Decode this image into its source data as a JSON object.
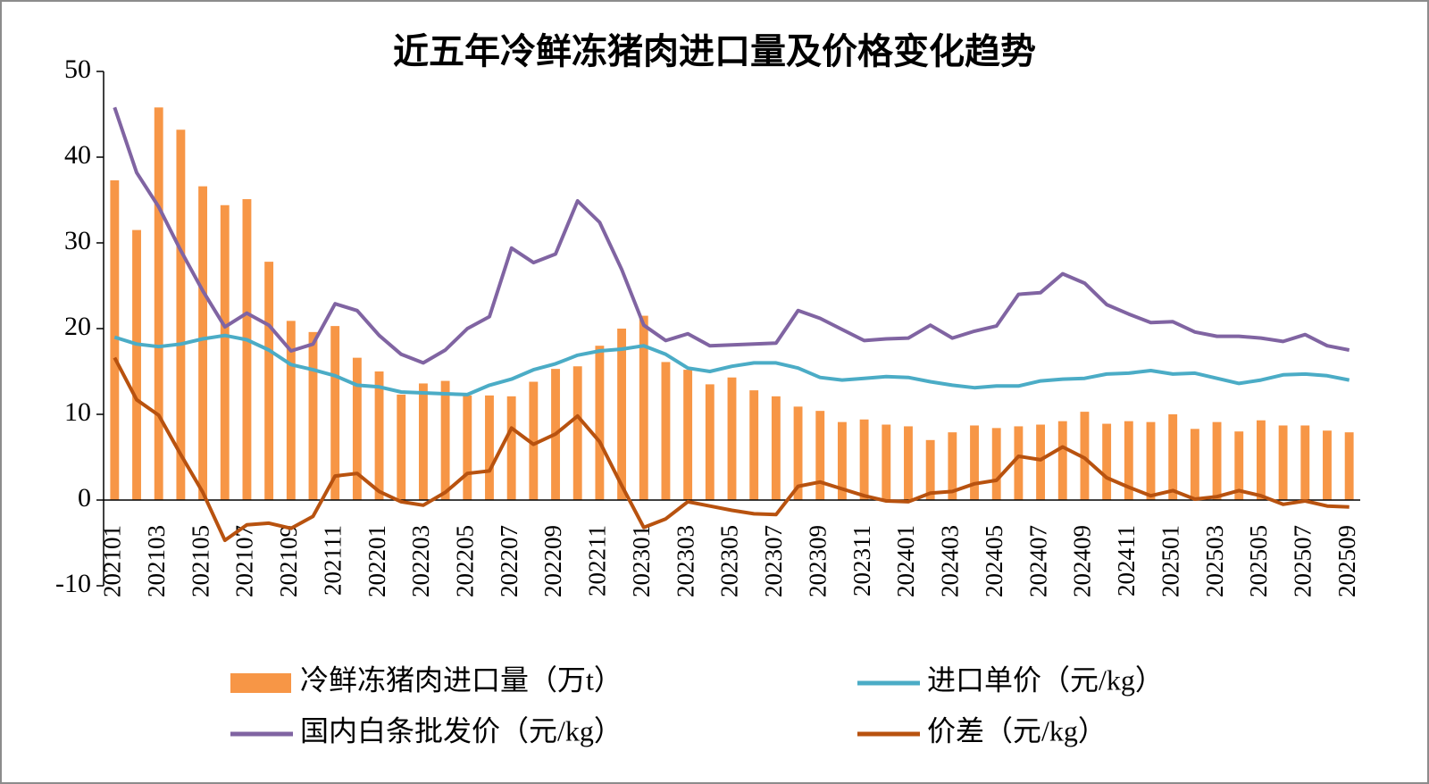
{
  "chart_data": {
    "type": "bar",
    "title": "近五年冷鲜冻猪肉进口量及价格变化趋势",
    "categories": [
      "202101",
      null,
      "202103",
      null,
      "202105",
      null,
      "202107",
      null,
      "202109",
      null,
      "202111",
      null,
      "202201",
      null,
      "202203",
      null,
      "202205",
      null,
      "202207",
      null,
      "202209",
      null,
      "202211",
      null,
      "202301",
      null,
      "202303",
      null,
      "202305",
      null,
      "202307",
      null,
      "202309",
      null,
      "202311",
      null,
      "202401",
      null,
      "202403",
      null,
      "202405",
      null,
      "202407",
      null,
      "202409",
      null,
      "202411",
      null,
      "202501",
      null,
      "202503",
      null,
      "202505",
      null,
      "202507",
      null,
      "202509"
    ],
    "series": [
      {
        "name": "冷鲜冻猪肉进口量（万t）",
        "type": "bar",
        "color": "#f79646",
        "values": [
          37.3,
          31.5,
          45.8,
          43.2,
          36.6,
          34.4,
          35.1,
          27.8,
          20.9,
          19.6,
          20.3,
          16.6,
          15.0,
          12.3,
          13.6,
          13.9,
          12.2,
          12.2,
          12.1,
          13.8,
          15.3,
          15.6,
          18.0,
          20.0,
          21.5,
          16.1,
          15.2,
          13.5,
          14.3,
          12.8,
          12.1,
          10.9,
          10.4,
          9.1,
          9.4,
          8.8,
          8.6,
          7.0,
          7.9,
          8.7,
          8.4,
          8.6,
          8.8,
          9.2,
          10.3,
          8.9,
          9.2,
          9.1,
          10.0,
          8.3,
          9.1,
          8.0,
          9.3,
          8.7,
          8.7,
          8.1,
          7.9
        ]
      },
      {
        "name": "进口单价（元/kg）",
        "type": "line",
        "color": "#4bacc6",
        "values": [
          19.0,
          18.2,
          17.9,
          18.2,
          18.8,
          19.2,
          18.7,
          17.5,
          15.8,
          15.2,
          14.5,
          13.4,
          13.2,
          12.6,
          12.5,
          12.4,
          12.3,
          13.4,
          14.1,
          15.2,
          15.9,
          16.9,
          17.4,
          17.6,
          18.0,
          17.0,
          15.4,
          15.0,
          15.6,
          16.0,
          16.0,
          15.4,
          14.3,
          14.0,
          14.2,
          14.4,
          14.3,
          13.8,
          13.4,
          13.1,
          13.3,
          13.3,
          13.9,
          14.1,
          14.2,
          14.7,
          14.8,
          15.1,
          14.7,
          14.8,
          14.2,
          13.6,
          14.0,
          14.6,
          14.7,
          14.5,
          14.0
        ]
      },
      {
        "name": "国内白条批发价（元/kg）",
        "type": "line",
        "color": "#8064a2",
        "values": [
          45.8,
          38.2,
          34.2,
          29.1,
          24.4,
          20.2,
          21.8,
          20.4,
          17.4,
          18.2,
          22.9,
          22.1,
          19.2,
          17.0,
          16.0,
          17.5,
          20.0,
          21.4,
          29.4,
          27.7,
          28.7,
          34.9,
          32.4,
          26.9,
          20.4,
          18.6,
          19.4,
          18.0,
          18.1,
          18.2,
          18.3,
          22.1,
          21.2,
          19.9,
          18.6,
          18.8,
          18.9,
          20.4,
          18.9,
          19.7,
          20.3,
          24.0,
          24.2,
          26.4,
          25.3,
          22.8,
          21.7,
          20.7,
          20.8,
          19.6,
          19.1,
          19.1,
          18.9,
          18.5,
          19.3,
          18.0,
          17.5
        ]
      },
      {
        "name": "价差（元/kg）",
        "type": "line",
        "color": "#b8520f",
        "values": [
          16.6,
          11.7,
          9.9,
          5.3,
          0.9,
          -4.7,
          -2.9,
          -2.7,
          -3.3,
          -1.9,
          2.8,
          3.1,
          1.0,
          -0.2,
          -0.6,
          0.9,
          3.1,
          3.4,
          8.4,
          6.5,
          7.7,
          9.8,
          6.8,
          1.7,
          -3.2,
          -2.2,
          -0.2,
          -0.7,
          -1.2,
          -1.6,
          -1.7,
          1.6,
          2.1,
          1.3,
          0.5,
          -0.1,
          -0.2,
          0.8,
          1.0,
          1.9,
          2.3,
          5.1,
          4.7,
          6.2,
          4.9,
          2.6,
          1.5,
          0.5,
          1.1,
          0.1,
          0.4,
          1.1,
          0.5,
          -0.5,
          -0.1,
          -0.7,
          -0.8
        ]
      }
    ],
    "ylim": [
      -10,
      50
    ],
    "yticks": [
      -10,
      0,
      10,
      20,
      30,
      40,
      50
    ],
    "grid": false,
    "legend": "bottom"
  }
}
